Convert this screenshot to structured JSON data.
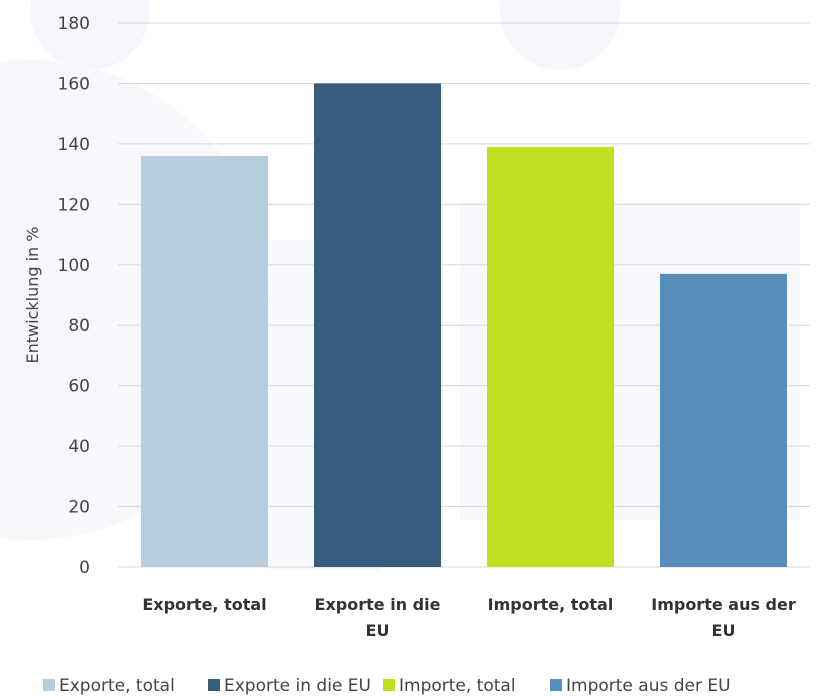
{
  "chart_data": {
    "type": "bar",
    "categories": [
      [
        "Exporte, total"
      ],
      [
        "Exporte in die",
        "EU"
      ],
      [
        "Importe, total"
      ],
      [
        "Importe aus der",
        "EU"
      ]
    ],
    "values": [
      136,
      160,
      139,
      97
    ],
    "colors": [
      "#b7cddc",
      "#365d7e",
      "#c2df20",
      "#588dba"
    ],
    "ylabel": "Entwicklung in %",
    "ylim": [
      0,
      180
    ],
    "yticks": [
      0,
      20,
      40,
      60,
      80,
      100,
      120,
      140,
      160,
      180
    ],
    "grid": true,
    "legend": {
      "position": "bottom",
      "entries": [
        "Exporte, total",
        "Exporte in die EU",
        "Importe, total",
        "Importe aus der EU"
      ]
    }
  }
}
